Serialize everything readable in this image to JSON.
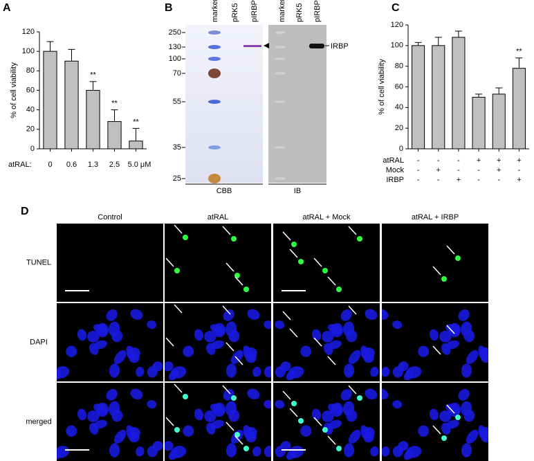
{
  "chart_data": [
    {
      "type": "bar",
      "letter": "A",
      "ylabel": "% of cell viability",
      "xlabel": "atRAL:",
      "categories": [
        "0",
        "0.6",
        "1.3",
        "2.5",
        "5.0 μM"
      ],
      "values": [
        100,
        90,
        60,
        28,
        8
      ],
      "errors": [
        10,
        12,
        9,
        12,
        13
      ],
      "annotations": [
        null,
        null,
        "**",
        "**",
        "**"
      ],
      "color": "#c0c0c0",
      "ylim": [
        0,
        120
      ],
      "yticks": [
        0,
        20,
        40,
        60,
        80,
        100,
        120
      ]
    },
    {
      "type": "bar",
      "letter": "C",
      "ylabel": "% of cell viability",
      "values": [
        100,
        100,
        108,
        50,
        53,
        78
      ],
      "errors": [
        3,
        8,
        6,
        3,
        6,
        10
      ],
      "annotations": [
        null,
        null,
        null,
        null,
        null,
        "**"
      ],
      "conditions": [
        {
          "name": "atRAL",
          "values": [
            "-",
            "-",
            "-",
            "+",
            "+",
            "+"
          ]
        },
        {
          "name": "Mock",
          "values": [
            "-",
            "+",
            "-",
            "-",
            "+",
            "-"
          ]
        },
        {
          "name": "IRBP",
          "values": [
            "-",
            "-",
            "+",
            "-",
            "-",
            "+"
          ]
        }
      ],
      "color": "#c0c0c0",
      "ylim": [
        0,
        120
      ],
      "yticks": [
        0,
        20,
        40,
        60,
        80,
        100,
        120
      ]
    }
  ],
  "blot": {
    "letter": "B",
    "lanes": [
      "marker",
      "pRK5",
      "pIRBP",
      "marker",
      "pRK5",
      "pIRBP"
    ],
    "markers": [
      250,
      130,
      100,
      70,
      55,
      35,
      25
    ],
    "band_label": "IRBP",
    "gels": [
      "CBB",
      "IB"
    ]
  },
  "images": {
    "letter": "D",
    "columns": [
      "Control",
      "atRAL",
      "atRAL + Mock",
      "atRAL + IRBP"
    ],
    "rows": [
      {
        "label": "TUNEL",
        "color": "#22c03a"
      },
      {
        "label": "DAPI",
        "color": "#2020d0"
      },
      {
        "label": "merged",
        "color": "#000000"
      }
    ]
  }
}
